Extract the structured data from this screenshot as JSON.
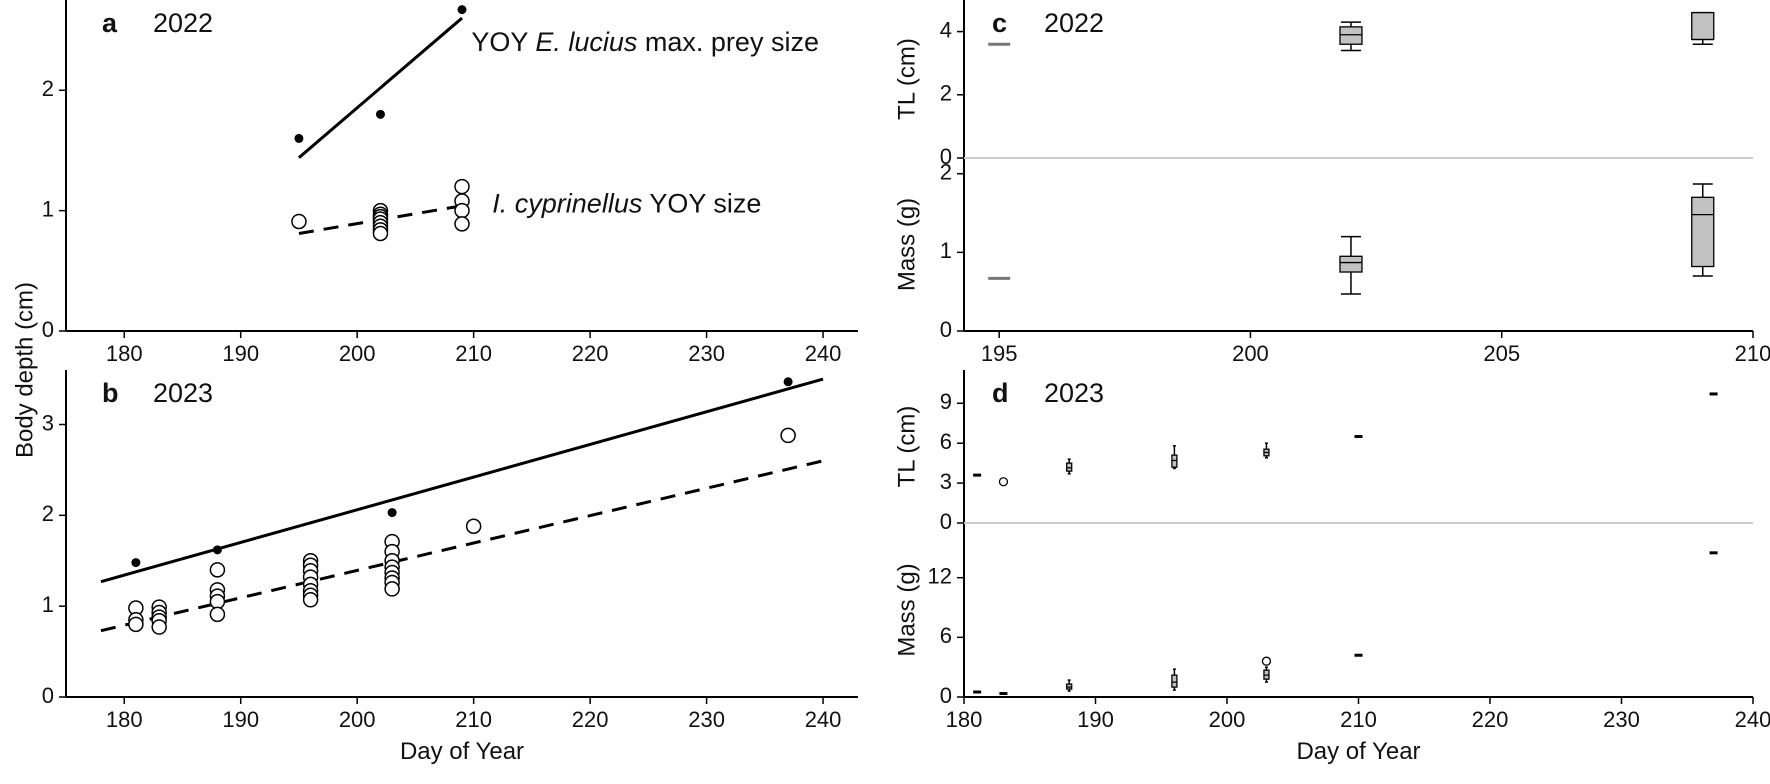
{
  "colors": {
    "pike": "#000000",
    "cisco": "#000000",
    "zero_line": "#cccccc",
    "box_fill": "#c2c2c2",
    "median_only": "#777777"
  },
  "figure": {
    "shared_ylabel": "Body depth (cm)"
  },
  "chart_data": [
    {
      "id": "a",
      "panel_letter": "a",
      "year": "2022",
      "type": "scatter",
      "xlabel": "",
      "ylabel": "",
      "xlim": [
        175,
        243
      ],
      "ylim": [
        0,
        2.75
      ],
      "xticks": [
        180,
        190,
        200,
        210,
        220,
        230,
        240
      ],
      "yticks": [
        0,
        1,
        2
      ],
      "annotations": [
        {
          "key": "pike",
          "parts": [
            {
              "text": "YOY ",
              "italic": false
            },
            {
              "text": "E. lucius",
              "italic": true
            },
            {
              "text": " max. prey size",
              "italic": false
            }
          ],
          "x": 209.8,
          "y": 2.4
        },
        {
          "key": "cisco",
          "parts": [
            {
              "text": "I. cyprinellus",
              "italic": true
            },
            {
              "text": " YOY size",
              "italic": false
            }
          ],
          "x": 211.6,
          "y": 1.06
        }
      ],
      "series": [
        {
          "key": "pike",
          "marker": "filled",
          "points": [
            [
              195,
              1.6
            ],
            [
              202,
              1.8
            ],
            [
              209,
              2.67
            ]
          ],
          "fit": {
            "x": [
              195,
              209
            ],
            "y": [
              1.44,
              2.6
            ],
            "style": "solid"
          }
        },
        {
          "key": "cisco",
          "marker": "open",
          "points": [
            [
              195,
              0.91
            ],
            [
              202,
              1.0
            ],
            [
              202,
              0.97
            ],
            [
              202,
              0.95
            ],
            [
              202,
              0.93
            ],
            [
              202,
              0.9
            ],
            [
              202,
              0.87
            ],
            [
              202,
              0.84
            ],
            [
              202,
              0.81
            ],
            [
              209,
              1.2
            ],
            [
              209,
              1.08
            ],
            [
              209,
              1.0
            ],
            [
              209,
              0.89
            ]
          ],
          "fit": {
            "x": [
              195,
              209
            ],
            "y": [
              0.81,
              1.04
            ],
            "style": "dashed"
          }
        }
      ]
    },
    {
      "id": "b",
      "panel_letter": "b",
      "year": "2023",
      "type": "scatter",
      "xlabel": "Day of Year",
      "ylabel": "",
      "xlim": [
        175,
        243
      ],
      "ylim": [
        0,
        3.6
      ],
      "xticks": [
        180,
        190,
        200,
        210,
        220,
        230,
        240
      ],
      "yticks": [
        0,
        1,
        2,
        3
      ],
      "series": [
        {
          "key": "pike",
          "marker": "filled",
          "points": [
            [
              181,
              1.48
            ],
            [
              188,
              1.62
            ],
            [
              203,
              2.03
            ],
            [
              237,
              3.47
            ]
          ],
          "fit": {
            "x": [
              178,
              240
            ],
            "y": [
              1.27,
              3.5
            ],
            "style": "solid"
          }
        },
        {
          "key": "cisco",
          "marker": "open",
          "points": [
            [
              181,
              0.98
            ],
            [
              181,
              0.85
            ],
            [
              181,
              0.8
            ],
            [
              183,
              0.99
            ],
            [
              183,
              0.93
            ],
            [
              183,
              0.88
            ],
            [
              183,
              0.84
            ],
            [
              183,
              0.77
            ],
            [
              188,
              1.4
            ],
            [
              188,
              1.18
            ],
            [
              188,
              1.11
            ],
            [
              188,
              1.05
            ],
            [
              188,
              0.91
            ],
            [
              196,
              1.5
            ],
            [
              196,
              1.45
            ],
            [
              196,
              1.39
            ],
            [
              196,
              1.32
            ],
            [
              196,
              1.24
            ],
            [
              196,
              1.17
            ],
            [
              196,
              1.12
            ],
            [
              196,
              1.07
            ],
            [
              203,
              1.71
            ],
            [
              203,
              1.6
            ],
            [
              203,
              1.5
            ],
            [
              203,
              1.43
            ],
            [
              203,
              1.37
            ],
            [
              203,
              1.31
            ],
            [
              203,
              1.26
            ],
            [
              203,
              1.19
            ],
            [
              210,
              1.88
            ],
            [
              237,
              2.88
            ]
          ],
          "fit": {
            "x": [
              178,
              240
            ],
            "y": [
              0.73,
              2.6
            ],
            "style": "dashed"
          }
        }
      ]
    },
    {
      "id": "c",
      "panel_letter": "c",
      "year": "2022",
      "type": "box",
      "xlabel": "",
      "xlim": [
        194.3,
        210
      ],
      "xticks": [
        195,
        200,
        205,
        210
      ],
      "subplots": [
        {
          "ylabel": "TL (cm)",
          "ylim": [
            0,
            5.0
          ],
          "yticks": [
            0,
            2,
            4
          ],
          "boxes": [
            {
              "x": 195,
              "median": 3.6
            },
            {
              "x": 202,
              "min": 3.4,
              "q1": 3.6,
              "median": 3.9,
              "q3": 4.15,
              "max": 4.3,
              "outliers": []
            },
            {
              "x": 209,
              "min": 3.6,
              "q1": 3.75,
              "median": 3.75,
              "q3": 4.6,
              "max": 4.6,
              "outliers": []
            }
          ]
        },
        {
          "ylabel": "Mass (g)",
          "ylim": [
            0,
            2.2
          ],
          "yticks": [
            0,
            1,
            2
          ],
          "boxes": [
            {
              "x": 195,
              "median": 0.67
            },
            {
              "x": 202,
              "min": 0.47,
              "q1": 0.75,
              "median": 0.87,
              "q3": 0.95,
              "max": 1.2,
              "outliers": []
            },
            {
              "x": 209,
              "min": 0.7,
              "q1": 0.82,
              "median": 1.48,
              "q3": 1.7,
              "max": 1.87,
              "outliers": []
            }
          ]
        }
      ]
    },
    {
      "id": "d",
      "panel_letter": "d",
      "year": "2023",
      "type": "box",
      "xlabel": "Day of Year",
      "xlim": [
        180,
        240
      ],
      "xticks": [
        180,
        190,
        200,
        210,
        220,
        230,
        240
      ],
      "subplots": [
        {
          "ylabel": "TL (cm)",
          "ylim": [
            0,
            11.5
          ],
          "yticks": [
            0,
            3,
            6,
            9
          ],
          "boxes": [
            {
              "x": 181,
              "median": 3.6
            },
            {
              "x": 183,
              "min": 2.95,
              "q1": 3.0,
              "median": 3.1,
              "q3": 3.2,
              "max": 3.3,
              "outliers": [
                3.1
              ]
            },
            {
              "x": 188,
              "min": 3.7,
              "q1": 3.9,
              "median": 4.15,
              "q3": 4.5,
              "max": 4.8,
              "outliers": []
            },
            {
              "x": 196,
              "min": 4.1,
              "q1": 4.2,
              "median": 4.7,
              "q3": 5.1,
              "max": 5.8,
              "outliers": []
            },
            {
              "x": 203,
              "min": 4.9,
              "q1": 5.05,
              "median": 5.3,
              "q3": 5.55,
              "max": 6.0,
              "outliers": []
            },
            {
              "x": 210,
              "median": 6.5
            },
            {
              "x": 237,
              "median": 9.7
            }
          ]
        },
        {
          "ylabel": "Mass (g)",
          "ylim": [
            0,
            17.5
          ],
          "yticks": [
            0,
            6,
            12
          ],
          "boxes": [
            {
              "x": 181,
              "median": 0.5
            },
            {
              "x": 183,
              "median": 0.35
            },
            {
              "x": 188,
              "min": 0.6,
              "q1": 0.8,
              "median": 1.0,
              "q3": 1.3,
              "max": 1.7,
              "outliers": []
            },
            {
              "x": 196,
              "min": 0.7,
              "q1": 1.0,
              "median": 1.5,
              "q3": 2.2,
              "max": 2.8,
              "outliers": []
            },
            {
              "x": 203,
              "min": 1.5,
              "q1": 1.8,
              "median": 2.2,
              "q3": 2.7,
              "max": 3.0,
              "outliers": [
                3.6
              ]
            },
            {
              "x": 210,
              "median": 4.2
            },
            {
              "x": 237,
              "median": 14.5
            }
          ]
        }
      ]
    }
  ]
}
